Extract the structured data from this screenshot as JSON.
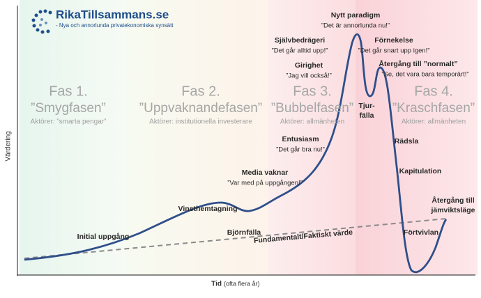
{
  "logo": {
    "name": "RikaTillsammans.se",
    "tagline": "- Nya och annorlunda privatekonomiska synsätt"
  },
  "phases": [
    {
      "title": "Fas 1.",
      "subtitle": "”Smygfasen”",
      "actors": "Aktörer: ”smarta pengar”"
    },
    {
      "title": "Fas 2.",
      "subtitle": "”Uppvaknandefasen”",
      "actors": "Aktörer: institutionella investerare"
    },
    {
      "title": "Fas 3.",
      "subtitle": "”Bubbelfasen”",
      "actors": "Aktörer: allmänheten"
    },
    {
      "title": "Fas 4.",
      "subtitle": "”Kraschfasen”",
      "actors": "Aktörer: allmänheten"
    }
  ],
  "annotations": [
    {
      "title": "Initial uppgång"
    },
    {
      "title": "Vinsthemtagning"
    },
    {
      "title": "Björnfälla"
    },
    {
      "title": "Media vaknar",
      "quote": "”Var med på uppgången!”"
    },
    {
      "title": "Entusiasm",
      "quote": "”Det går bra nu!”"
    },
    {
      "title": "Girighet",
      "quote": "”Jag vill också!”"
    },
    {
      "title": "Självbedrägeri",
      "quote": "”Det går alltid upp!”"
    },
    {
      "title": "Nytt paradigm",
      "quote": "”Det är annorlunda nu!”"
    },
    {
      "title": "Förnekelse",
      "quote": "”Det går snart upp igen!”"
    },
    {
      "title": "Återgång till ”normalt”",
      "quote": "”Se, det vara bara temporärt!”"
    },
    {
      "lines": [
        "Tjur-",
        "fälla"
      ]
    },
    {
      "title": "Rädsla"
    },
    {
      "title": "Kapitulation"
    },
    {
      "lines": [
        "Återgång till",
        "jämviktsläge"
      ]
    },
    {
      "title": "Förtvivlan"
    }
  ],
  "fundamental": "Fundamentalt/Faktiskt värde",
  "axes": {
    "y": "Värdering",
    "x": "Tid",
    "x_note": "(ofta flera år)"
  }
}
